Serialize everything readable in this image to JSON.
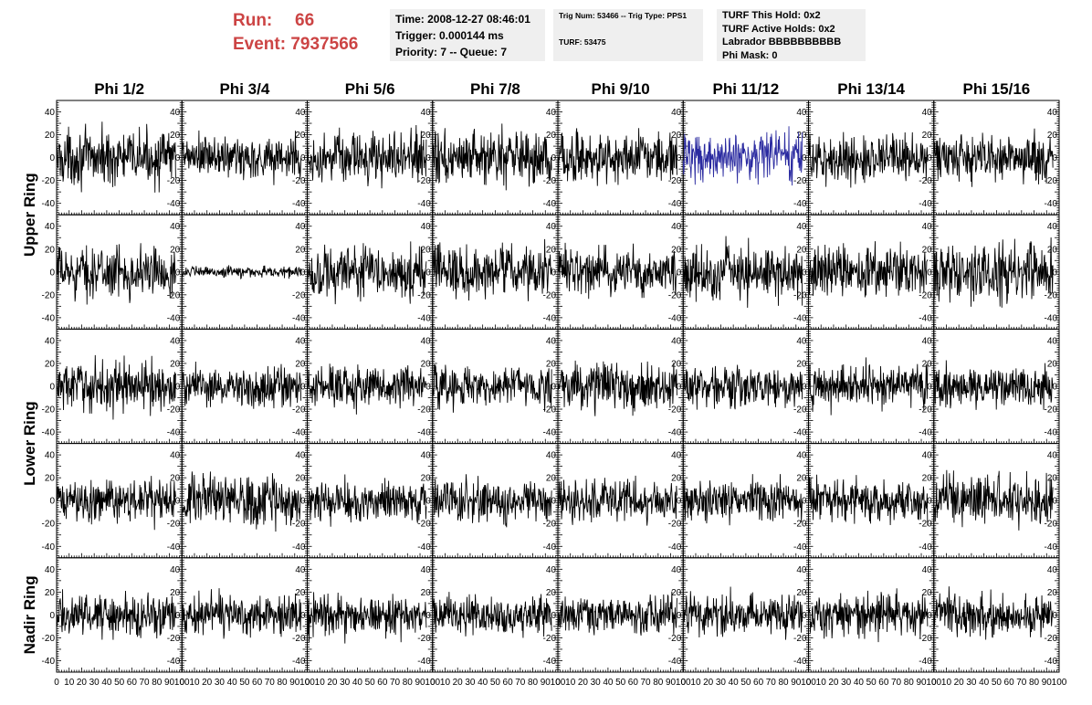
{
  "header": {
    "run_label": "Run:",
    "run_value": "66",
    "event_label": "Event:",
    "event_value": "7937566"
  },
  "info_time": {
    "time": "Time: 2008-12-27 08:46:01",
    "trigger": "Trigger: 0.000144 ms",
    "priority": "Priority: 7 -- Queue: 7"
  },
  "info_trig": {
    "trig": "Trig Num: 53466 -- Trig Type: PPS1",
    "turf": "TURF: 53475"
  },
  "info_turf": {
    "hold": "TURF This Hold: 0x2",
    "active": "TURF Active Holds: 0x2",
    "labrador": "Labrador BBBBBBBBBB",
    "phimask": "Phi Mask: 0"
  },
  "colors": {
    "trace": "#000000",
    "highlight_trace": "#2a2aa0",
    "header_red": "#cc4444",
    "info_bg": "#efefef"
  },
  "chart_data": {
    "type": "line",
    "columns": [
      "Phi 1/2",
      "Phi 3/4",
      "Phi 5/6",
      "Phi 7/8",
      "Phi 9/10",
      "Phi 11/12",
      "Phi 13/14",
      "Phi 15/16"
    ],
    "row_labels": [
      "Upper Ring",
      "Lower Ring",
      "Nadir Ring"
    ],
    "row_label_spans": [
      2,
      2,
      1
    ],
    "panel_rows": 5,
    "ylim": [
      -50,
      50
    ],
    "yticks": [
      "40",
      "20",
      "0",
      "-20",
      "-40"
    ],
    "xlim": [
      0,
      100
    ],
    "xticks": [
      "0",
      "10",
      "20",
      "30",
      "40",
      "50",
      "60",
      "70",
      "80",
      "90",
      "100"
    ],
    "samples_per_trace": 260,
    "trace_x_extent": 95,
    "highlighted_panel": {
      "row": 0,
      "col": 5
    },
    "amplitudes": [
      [
        14,
        12,
        13,
        14,
        13,
        13,
        12,
        13
      ],
      [
        13,
        3,
        14,
        14,
        12,
        14,
        14,
        15
      ],
      [
        13,
        11,
        11,
        11,
        12,
        11,
        11,
        11
      ],
      [
        11,
        13,
        11,
        11,
        11,
        11,
        11,
        13
      ],
      [
        11,
        11,
        11,
        10,
        10,
        11,
        11,
        11
      ]
    ]
  }
}
